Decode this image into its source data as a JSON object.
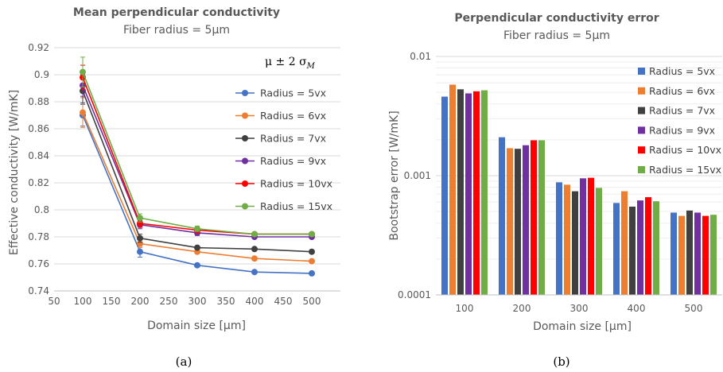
{
  "colors": {
    "Radius = 5vx": "#4472C4",
    "Radius = 6vx": "#ED7D31",
    "Radius = 7vx": "#404040",
    "Radius = 9vx": "#7030A0",
    "Radius = 10vx": "#FF0000",
    "Radius = 15vx": "#70AD47"
  },
  "chart_data": [
    {
      "type": "line",
      "title": "Mean perpendicular conductivity",
      "subtitle": "Fiber radius = 5µm",
      "xlabel": "Domain size [µm]",
      "ylabel": "Effective conductivity [W/mK]",
      "annotation": "μ ± 2 σ",
      "annotation_sub": "M",
      "xlim": [
        50,
        550
      ],
      "ylim": [
        0.74,
        0.92
      ],
      "x_ticks": [
        "50",
        "100",
        "150",
        "200",
        "250",
        "300",
        "350",
        "400",
        "450",
        "500"
      ],
      "y_ticks": [
        "0.74",
        "0.76",
        "0.78",
        "0.8",
        "0.82",
        "0.84",
        "0.86",
        "0.88",
        "0.9",
        "0.92"
      ],
      "grid": true,
      "legend": "right",
      "caption": "(a)",
      "x": [
        100,
        200,
        300,
        400,
        500
      ],
      "series": [
        {
          "name": "Radius = 5vx",
          "values": [
            0.87,
            0.769,
            0.759,
            0.754,
            0.753
          ],
          "err": [
            0.008,
            0.004,
            0,
            0,
            0
          ]
        },
        {
          "name": "Radius = 6vx",
          "values": [
            0.872,
            0.775,
            0.769,
            0.764,
            0.762
          ],
          "err": [
            0.011,
            0.003,
            0,
            0,
            0
          ]
        },
        {
          "name": "Radius = 7vx",
          "values": [
            0.888,
            0.779,
            0.772,
            0.771,
            0.769
          ],
          "err": [
            0.009,
            0.003,
            0,
            0,
            0
          ]
        },
        {
          "name": "Radius = 9vx",
          "values": [
            0.892,
            0.789,
            0.783,
            0.78,
            0.78
          ],
          "err": [
            0.008,
            0.003,
            0.002,
            0.001,
            0.001
          ]
        },
        {
          "name": "Radius = 10vx",
          "values": [
            0.898,
            0.79,
            0.785,
            0.782,
            0.782
          ],
          "err": [
            0.009,
            0.003,
            0.002,
            0.001,
            0.001
          ]
        },
        {
          "name": "Radius = 15vx",
          "values": [
            0.902,
            0.794,
            0.786,
            0.782,
            0.782
          ],
          "err": [
            0.011,
            0.003,
            0.002,
            0.001,
            0.001
          ]
        }
      ]
    },
    {
      "type": "bar",
      "title": "Perpendicular conductivity error",
      "subtitle": "Fiber radius = 5µm",
      "xlabel": "Domain size [µm]",
      "ylabel": "Bootstrap error [W/mK]",
      "y_scale": "log",
      "ylim": [
        0.0001,
        0.01
      ],
      "y_ticks": [
        "0.0001",
        "0.001",
        "0.01"
      ],
      "grid": true,
      "legend": "right",
      "caption": "(b)",
      "categories": [
        "100",
        "200",
        "300",
        "400",
        "500"
      ],
      "series": [
        {
          "name": "Radius = 5vx",
          "values": [
            0.0046,
            0.0021,
            0.00088,
            0.00059,
            0.00049
          ]
        },
        {
          "name": "Radius = 6vx",
          "values": [
            0.0058,
            0.0017,
            0.00084,
            0.00074,
            0.00046
          ]
        },
        {
          "name": "Radius = 7vx",
          "values": [
            0.0053,
            0.00168,
            0.00074,
            0.00055,
            0.00051
          ]
        },
        {
          "name": "Radius = 9vx",
          "values": [
            0.0049,
            0.0018,
            0.00095,
            0.00062,
            0.00049
          ]
        },
        {
          "name": "Radius = 10vx",
          "values": [
            0.0051,
            0.00198,
            0.00096,
            0.00066,
            0.00046
          ]
        },
        {
          "name": "Radius = 15vx",
          "values": [
            0.0052,
            0.00198,
            0.00079,
            0.00061,
            0.00047
          ]
        }
      ]
    }
  ]
}
